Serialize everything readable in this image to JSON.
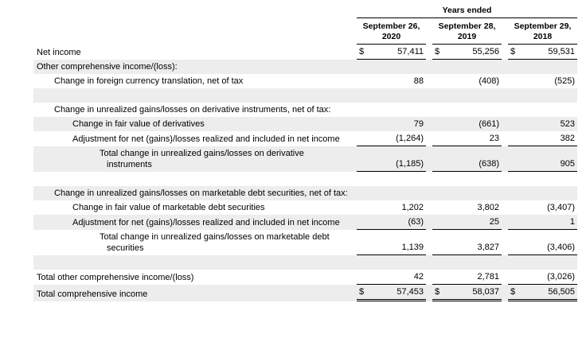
{
  "table": {
    "header": {
      "years_ended": "Years ended",
      "columns": [
        {
          "line1": "September 26,",
          "line2": "2020"
        },
        {
          "line1": "September 28,",
          "line2": "2019"
        },
        {
          "line1": "September 29,",
          "line2": "2018"
        }
      ]
    },
    "rows": [
      {
        "label": "Net income",
        "indent": 0,
        "dollar": "$",
        "values": [
          "57,411",
          "55,256",
          "59,531"
        ],
        "shaded": false,
        "rule": "single"
      },
      {
        "label": "Other comprehensive income/(loss):",
        "indent": 0,
        "values": [
          "",
          "",
          ""
        ],
        "shaded": true,
        "rule": "none"
      },
      {
        "label": "Change in foreign currency translation, net of tax",
        "indent": 1,
        "values": [
          "88",
          "(408)",
          "(525)"
        ],
        "shaded": false,
        "rule": "none"
      },
      {
        "label": "",
        "indent": 0,
        "values": [
          "",
          "",
          ""
        ],
        "shaded": true,
        "rule": "none",
        "blank": true
      },
      {
        "label": "Change in unrealized gains/losses on derivative instruments, net of tax:",
        "indent": 1,
        "values": [
          "",
          "",
          ""
        ],
        "shaded": false,
        "rule": "none"
      },
      {
        "label": "Change in fair value of derivatives",
        "indent": 2,
        "values": [
          "79",
          "(661)",
          "523"
        ],
        "shaded": true,
        "rule": "none"
      },
      {
        "label": "Adjustment for net (gains)/losses realized and included in net income",
        "indent": 2,
        "values": [
          "(1,264)",
          "23",
          "382"
        ],
        "shaded": false,
        "rule": "single"
      },
      {
        "label": "Total change in unrealized gains/losses on derivative instruments",
        "indent": 3,
        "values": [
          "(1,185)",
          "(638)",
          "905"
        ],
        "shaded": true,
        "rule": "single"
      },
      {
        "label": "",
        "indent": 0,
        "values": [
          "",
          "",
          ""
        ],
        "shaded": false,
        "rule": "none",
        "blank": true
      },
      {
        "label": "Change in unrealized gains/losses on marketable debt securities, net of tax:",
        "indent": 1,
        "values": [
          "",
          "",
          ""
        ],
        "shaded": true,
        "rule": "none"
      },
      {
        "label": "Change in fair value of marketable debt securities",
        "indent": 2,
        "values": [
          "1,202",
          "3,802",
          "(3,407)"
        ],
        "shaded": false,
        "rule": "none"
      },
      {
        "label": "Adjustment for net (gains)/losses realized and included in net income",
        "indent": 2,
        "values": [
          "(63)",
          "25",
          "1"
        ],
        "shaded": true,
        "rule": "single"
      },
      {
        "label": "Total change in unrealized gains/losses on marketable debt securities",
        "indent": 3,
        "values": [
          "1,139",
          "3,827",
          "(3,406)"
        ],
        "shaded": false,
        "rule": "single"
      },
      {
        "label": "",
        "indent": 0,
        "values": [
          "",
          "",
          ""
        ],
        "shaded": true,
        "rule": "none",
        "blank": true
      },
      {
        "label": "Total other comprehensive income/(loss)",
        "indent": 0,
        "values": [
          "42",
          "2,781",
          "(3,026)"
        ],
        "shaded": false,
        "rule": "single"
      },
      {
        "label": "Total comprehensive income",
        "indent": 0,
        "dollar": "$",
        "values": [
          "57,453",
          "58,037",
          "56,505"
        ],
        "shaded": true,
        "rule": "double"
      }
    ],
    "colors": {
      "shaded_row": "#ededed",
      "rule": "#000000",
      "text": "#000000"
    }
  }
}
